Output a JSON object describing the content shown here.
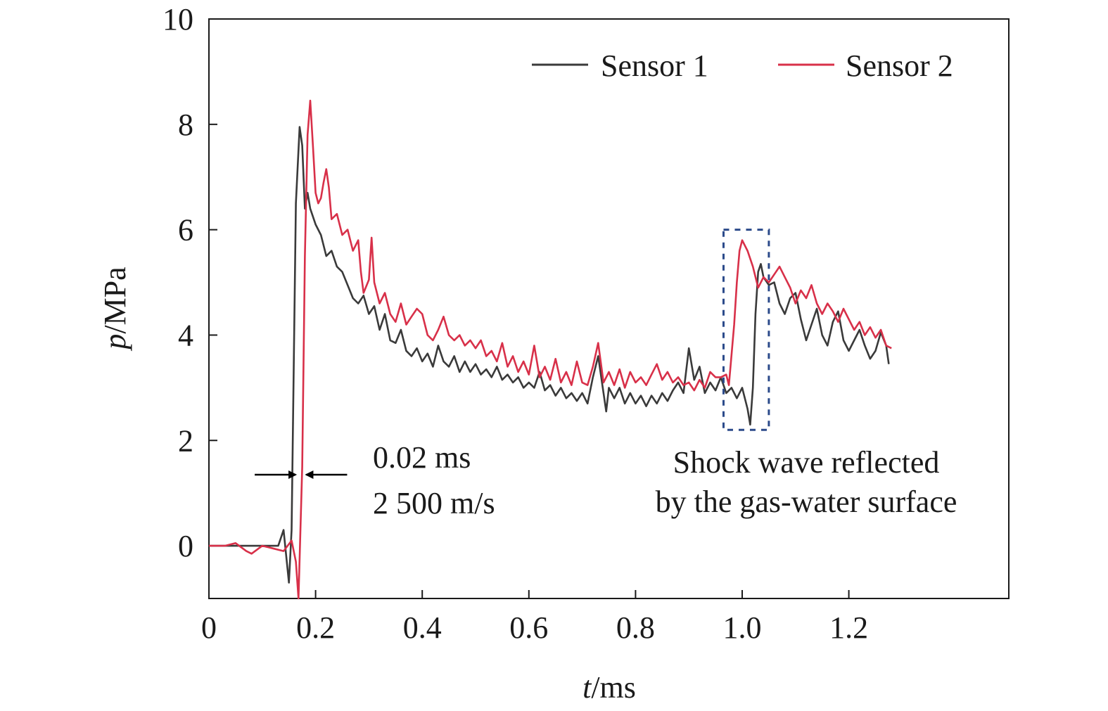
{
  "chart_data": {
    "type": "line",
    "xlabel_var": "t",
    "xlabel_unit": "/ms",
    "ylabel_var": "p",
    "ylabel_unit": "/MPa",
    "xlim": [
      0,
      1.5
    ],
    "ylim": [
      -1,
      10
    ],
    "xticks": [
      0,
      0.2,
      0.4,
      0.6,
      0.8,
      1.0,
      1.2
    ],
    "xtick_labels": [
      "0",
      "0.2",
      "0.4",
      "0.6",
      "0.8",
      "1.0",
      "1.2"
    ],
    "yticks": [
      0,
      2,
      4,
      6,
      8,
      10
    ],
    "ytick_labels": [
      "0",
      "2",
      "4",
      "6",
      "8",
      "10"
    ],
    "legend_placement": "top-right",
    "series": [
      {
        "name": "Sensor 1",
        "color": "#3a3a3a",
        "points": [
          [
            0.0,
            0.0
          ],
          [
            0.05,
            0.0
          ],
          [
            0.1,
            0.0
          ],
          [
            0.13,
            0.0
          ],
          [
            0.14,
            0.3
          ],
          [
            0.15,
            -0.7
          ],
          [
            0.155,
            0.3
          ],
          [
            0.163,
            6.5
          ],
          [
            0.17,
            7.95
          ],
          [
            0.175,
            7.6
          ],
          [
            0.18,
            6.4
          ],
          [
            0.185,
            6.7
          ],
          [
            0.19,
            6.4
          ],
          [
            0.2,
            6.1
          ],
          [
            0.21,
            5.9
          ],
          [
            0.22,
            5.5
          ],
          [
            0.23,
            5.6
          ],
          [
            0.24,
            5.3
          ],
          [
            0.25,
            5.2
          ],
          [
            0.26,
            4.95
          ],
          [
            0.27,
            4.7
          ],
          [
            0.28,
            4.6
          ],
          [
            0.29,
            4.75
          ],
          [
            0.3,
            4.4
          ],
          [
            0.31,
            4.55
          ],
          [
            0.32,
            4.1
          ],
          [
            0.33,
            4.4
          ],
          [
            0.34,
            3.9
          ],
          [
            0.35,
            3.85
          ],
          [
            0.36,
            4.1
          ],
          [
            0.37,
            3.7
          ],
          [
            0.38,
            3.6
          ],
          [
            0.39,
            3.75
          ],
          [
            0.4,
            3.5
          ],
          [
            0.41,
            3.65
          ],
          [
            0.42,
            3.4
          ],
          [
            0.43,
            3.8
          ],
          [
            0.44,
            3.5
          ],
          [
            0.45,
            3.4
          ],
          [
            0.46,
            3.6
          ],
          [
            0.47,
            3.3
          ],
          [
            0.48,
            3.5
          ],
          [
            0.49,
            3.3
          ],
          [
            0.5,
            3.45
          ],
          [
            0.51,
            3.25
          ],
          [
            0.52,
            3.35
          ],
          [
            0.53,
            3.2
          ],
          [
            0.54,
            3.4
          ],
          [
            0.55,
            3.15
          ],
          [
            0.56,
            3.25
          ],
          [
            0.57,
            3.1
          ],
          [
            0.58,
            3.2
          ],
          [
            0.59,
            3.0
          ],
          [
            0.6,
            3.1
          ],
          [
            0.61,
            3.0
          ],
          [
            0.62,
            3.3
          ],
          [
            0.63,
            2.95
          ],
          [
            0.64,
            3.05
          ],
          [
            0.65,
            2.85
          ],
          [
            0.66,
            3.0
          ],
          [
            0.67,
            2.8
          ],
          [
            0.68,
            2.9
          ],
          [
            0.69,
            2.75
          ],
          [
            0.7,
            2.9
          ],
          [
            0.71,
            2.7
          ],
          [
            0.72,
            3.2
          ],
          [
            0.73,
            3.6
          ],
          [
            0.74,
            2.9
          ],
          [
            0.745,
            2.55
          ],
          [
            0.75,
            3.0
          ],
          [
            0.76,
            2.8
          ],
          [
            0.77,
            3.0
          ],
          [
            0.78,
            2.7
          ],
          [
            0.79,
            2.9
          ],
          [
            0.8,
            2.7
          ],
          [
            0.81,
            2.85
          ],
          [
            0.82,
            2.65
          ],
          [
            0.83,
            2.85
          ],
          [
            0.84,
            2.7
          ],
          [
            0.85,
            2.9
          ],
          [
            0.86,
            2.75
          ],
          [
            0.87,
            2.95
          ],
          [
            0.88,
            3.1
          ],
          [
            0.89,
            2.9
          ],
          [
            0.9,
            3.75
          ],
          [
            0.91,
            3.15
          ],
          [
            0.92,
            3.4
          ],
          [
            0.93,
            2.9
          ],
          [
            0.94,
            3.1
          ],
          [
            0.95,
            2.95
          ],
          [
            0.96,
            3.2
          ],
          [
            0.97,
            2.9
          ],
          [
            0.98,
            3.0
          ],
          [
            0.99,
            2.8
          ],
          [
            1.0,
            3.0
          ],
          [
            1.01,
            2.6
          ],
          [
            1.015,
            2.3
          ],
          [
            1.02,
            3.0
          ],
          [
            1.025,
            4.4
          ],
          [
            1.03,
            5.2
          ],
          [
            1.035,
            5.35
          ],
          [
            1.04,
            5.1
          ],
          [
            1.05,
            4.95
          ],
          [
            1.06,
            5.0
          ],
          [
            1.07,
            4.6
          ],
          [
            1.08,
            4.4
          ],
          [
            1.09,
            4.7
          ],
          [
            1.1,
            4.8
          ],
          [
            1.11,
            4.3
          ],
          [
            1.12,
            3.9
          ],
          [
            1.13,
            4.2
          ],
          [
            1.14,
            4.5
          ],
          [
            1.15,
            4.0
          ],
          [
            1.16,
            3.8
          ],
          [
            1.17,
            4.25
          ],
          [
            1.18,
            4.45
          ],
          [
            1.19,
            3.9
          ],
          [
            1.2,
            3.7
          ],
          [
            1.21,
            3.9
          ],
          [
            1.22,
            4.1
          ],
          [
            1.23,
            3.8
          ],
          [
            1.24,
            3.55
          ],
          [
            1.25,
            3.7
          ],
          [
            1.26,
            4.05
          ],
          [
            1.27,
            3.8
          ],
          [
            1.275,
            3.45
          ]
        ]
      },
      {
        "name": "Sensor 2",
        "color": "#d83049",
        "points": [
          [
            0.0,
            0.0
          ],
          [
            0.03,
            0.0
          ],
          [
            0.05,
            0.05
          ],
          [
            0.07,
            -0.1
          ],
          [
            0.08,
            -0.15
          ],
          [
            0.1,
            0.0
          ],
          [
            0.12,
            -0.05
          ],
          [
            0.14,
            -0.1
          ],
          [
            0.155,
            0.1
          ],
          [
            0.163,
            -0.3
          ],
          [
            0.168,
            -1.0
          ],
          [
            0.175,
            1.5
          ],
          [
            0.18,
            5.5
          ],
          [
            0.185,
            7.8
          ],
          [
            0.19,
            8.45
          ],
          [
            0.195,
            7.6
          ],
          [
            0.2,
            6.7
          ],
          [
            0.205,
            6.5
          ],
          [
            0.21,
            6.6
          ],
          [
            0.215,
            6.9
          ],
          [
            0.22,
            7.15
          ],
          [
            0.225,
            6.8
          ],
          [
            0.23,
            6.2
          ],
          [
            0.24,
            6.3
          ],
          [
            0.25,
            5.9
          ],
          [
            0.26,
            6.0
          ],
          [
            0.27,
            5.6
          ],
          [
            0.28,
            5.8
          ],
          [
            0.285,
            5.2
          ],
          [
            0.29,
            4.8
          ],
          [
            0.3,
            5.05
          ],
          [
            0.305,
            5.85
          ],
          [
            0.31,
            5.0
          ],
          [
            0.32,
            4.6
          ],
          [
            0.33,
            4.8
          ],
          [
            0.34,
            4.4
          ],
          [
            0.35,
            4.25
          ],
          [
            0.36,
            4.6
          ],
          [
            0.37,
            4.2
          ],
          [
            0.38,
            4.35
          ],
          [
            0.39,
            4.5
          ],
          [
            0.4,
            4.4
          ],
          [
            0.41,
            4.0
          ],
          [
            0.42,
            3.9
          ],
          [
            0.43,
            4.1
          ],
          [
            0.44,
            4.35
          ],
          [
            0.45,
            4.0
          ],
          [
            0.46,
            3.9
          ],
          [
            0.47,
            4.0
          ],
          [
            0.48,
            3.8
          ],
          [
            0.49,
            3.9
          ],
          [
            0.5,
            3.75
          ],
          [
            0.51,
            3.9
          ],
          [
            0.52,
            3.6
          ],
          [
            0.53,
            3.7
          ],
          [
            0.54,
            3.5
          ],
          [
            0.55,
            3.85
          ],
          [
            0.56,
            3.4
          ],
          [
            0.57,
            3.6
          ],
          [
            0.58,
            3.3
          ],
          [
            0.59,
            3.5
          ],
          [
            0.6,
            3.25
          ],
          [
            0.61,
            3.8
          ],
          [
            0.62,
            3.2
          ],
          [
            0.63,
            3.4
          ],
          [
            0.64,
            3.15
          ],
          [
            0.65,
            3.55
          ],
          [
            0.66,
            3.1
          ],
          [
            0.67,
            3.3
          ],
          [
            0.68,
            3.05
          ],
          [
            0.69,
            3.5
          ],
          [
            0.7,
            3.1
          ],
          [
            0.71,
            3.05
          ],
          [
            0.72,
            3.4
          ],
          [
            0.73,
            3.85
          ],
          [
            0.74,
            3.1
          ],
          [
            0.75,
            3.3
          ],
          [
            0.76,
            3.05
          ],
          [
            0.77,
            3.35
          ],
          [
            0.78,
            3.0
          ],
          [
            0.79,
            3.3
          ],
          [
            0.8,
            3.1
          ],
          [
            0.81,
            3.2
          ],
          [
            0.82,
            3.05
          ],
          [
            0.83,
            3.25
          ],
          [
            0.84,
            3.45
          ],
          [
            0.85,
            3.15
          ],
          [
            0.86,
            3.3
          ],
          [
            0.87,
            3.1
          ],
          [
            0.88,
            3.2
          ],
          [
            0.89,
            3.05
          ],
          [
            0.9,
            3.1
          ],
          [
            0.91,
            2.95
          ],
          [
            0.92,
            3.15
          ],
          [
            0.93,
            3.0
          ],
          [
            0.94,
            3.3
          ],
          [
            0.95,
            3.2
          ],
          [
            0.96,
            3.2
          ],
          [
            0.97,
            3.25
          ],
          [
            0.975,
            3.05
          ],
          [
            0.985,
            4.2
          ],
          [
            0.99,
            5.0
          ],
          [
            0.995,
            5.6
          ],
          [
            1.0,
            5.8
          ],
          [
            1.01,
            5.6
          ],
          [
            1.02,
            5.3
          ],
          [
            1.03,
            4.9
          ],
          [
            1.04,
            5.1
          ],
          [
            1.05,
            5.0
          ],
          [
            1.06,
            5.15
          ],
          [
            1.07,
            5.3
          ],
          [
            1.08,
            5.1
          ],
          [
            1.09,
            4.9
          ],
          [
            1.1,
            4.6
          ],
          [
            1.11,
            4.85
          ],
          [
            1.12,
            4.7
          ],
          [
            1.13,
            4.95
          ],
          [
            1.14,
            4.6
          ],
          [
            1.15,
            4.4
          ],
          [
            1.16,
            4.6
          ],
          [
            1.17,
            4.45
          ],
          [
            1.18,
            4.25
          ],
          [
            1.19,
            4.5
          ],
          [
            1.2,
            4.3
          ],
          [
            1.21,
            4.1
          ],
          [
            1.22,
            4.25
          ],
          [
            1.23,
            4.0
          ],
          [
            1.24,
            4.15
          ],
          [
            1.25,
            3.95
          ],
          [
            1.26,
            4.1
          ],
          [
            1.27,
            3.8
          ],
          [
            1.28,
            3.75
          ]
        ]
      }
    ],
    "annotations": {
      "delay_lines": [
        "0.02 ms",
        "2 500 m/s"
      ],
      "reflect_lines": [
        "Shock wave reflected",
        "by the gas-water surface"
      ],
      "arrow_y": 1.35,
      "arrow_left_x": 0.165,
      "arrow_right_x": 0.18,
      "box_x": [
        0.965,
        1.05
      ],
      "box_y": [
        2.2,
        6.0
      ],
      "box_color": "#2b4a8a"
    }
  }
}
